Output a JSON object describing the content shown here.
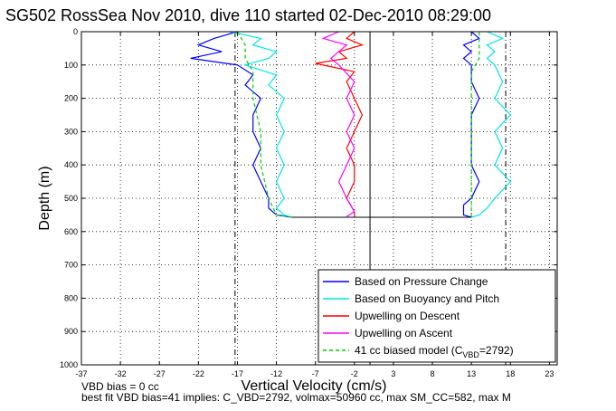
{
  "chart_data": {
    "type": "line",
    "title": "SG502 RossSea Nov 2010, dive 110 started 02-Dec-2010 08:29:00",
    "xlabel": "Vertical Velocity (cm/s)",
    "ylabel": "Depth (m)",
    "xlim": [
      -37,
      24
    ],
    "ylim": [
      1000,
      0
    ],
    "y_reversed": true,
    "grid": true,
    "x_ticks": [
      "-37",
      "-32",
      "-27",
      "-22",
      "-17",
      "-12",
      "-7",
      "-2",
      "3",
      "8",
      "13",
      "18",
      "23"
    ],
    "y_ticks": [
      "0",
      "100",
      "200",
      "300",
      "400",
      "500",
      "600",
      "700",
      "800",
      "900",
      "1000"
    ],
    "legend_position": "bottom-right",
    "reference_lines": [
      {
        "x": 0,
        "style": "solid",
        "color": "#000000"
      },
      {
        "x": -17.3,
        "style": "dash-dot",
        "color": "#000000"
      },
      {
        "x": 17.4,
        "style": "dash-dot",
        "color": "#000000"
      }
    ],
    "series": [
      {
        "name": "Based on Pressure Change",
        "color": "#0000ff",
        "style": "solid",
        "descent": {
          "depth": [
            0,
            20,
            40,
            60,
            80,
            100,
            130,
            160,
            200,
            250,
            300,
            350,
            400,
            450,
            500,
            530,
            550,
            557
          ],
          "velocity": [
            -17,
            -20,
            -22,
            -19,
            -23,
            -17,
            -15,
            -16,
            -14,
            -15,
            -15,
            -14,
            -15,
            -14,
            -13,
            -13,
            -12,
            -10
          ]
        },
        "ascent": {
          "depth": [
            557,
            550,
            520,
            500,
            450,
            400,
            350,
            300,
            250,
            200,
            150,
            100,
            80,
            60,
            40,
            20,
            0
          ],
          "velocity": [
            13,
            12,
            12,
            13,
            14,
            13,
            13,
            13,
            13,
            14,
            13,
            13,
            12,
            13,
            12,
            14,
            13
          ]
        }
      },
      {
        "name": "Based on Buoyancy and Pitch",
        "color": "#00e5e5",
        "style": "solid",
        "descent": {
          "depth": [
            0,
            20,
            40,
            60,
            80,
            100,
            130,
            160,
            200,
            250,
            300,
            350,
            400,
            450,
            500,
            530,
            550,
            557
          ],
          "velocity": [
            -18,
            -14,
            -15,
            -12,
            -13,
            -16,
            -12,
            -13,
            -11,
            -12,
            -11,
            -12,
            -11,
            -12,
            -11,
            -12,
            -11,
            -10
          ]
        },
        "ascent": {
          "depth": [
            557,
            550,
            530,
            500,
            450,
            400,
            350,
            300,
            250,
            200,
            150,
            100,
            80,
            60,
            40,
            20,
            0
          ],
          "velocity": [
            13,
            14,
            15,
            16,
            18,
            16,
            17,
            16,
            18,
            16,
            17,
            16,
            15,
            16,
            15,
            17,
            15
          ]
        }
      },
      {
        "name": "Upwelling on Descent",
        "color": "#ff0000",
        "style": "solid",
        "descent": {
          "depth": [
            0,
            20,
            40,
            60,
            80,
            95,
            120,
            150,
            200,
            250,
            300,
            350,
            400,
            450,
            500,
            540,
            555
          ],
          "velocity": [
            -2,
            -3,
            -1,
            -4,
            -3,
            -7,
            -2,
            -3,
            -2,
            -1,
            -2,
            -3,
            -2,
            -2,
            -3,
            -2,
            -2
          ]
        },
        "ascent": {
          "depth": [],
          "velocity": []
        }
      },
      {
        "name": "Upwelling on Ascent",
        "color": "#ff00ff",
        "style": "solid",
        "descent": {
          "depth": [],
          "velocity": []
        },
        "ascent": {
          "depth": [
            555,
            540,
            500,
            450,
            400,
            350,
            300,
            250,
            200,
            150,
            100,
            80,
            60,
            40,
            20,
            0
          ],
          "velocity": [
            -3,
            -2,
            -3,
            -4,
            -3,
            -2,
            -3,
            -2,
            -3,
            -2,
            -4,
            -5,
            -4,
            -3,
            -6,
            -4
          ]
        }
      },
      {
        "name": "41 cc biased model (C",
        "name_sub": "VBD",
        "name_suffix": "=2792)",
        "color": "#00cc00",
        "style": "dashed",
        "descent": {
          "depth": [
            0,
            40,
            80,
            120,
            200,
            300,
            400,
            500,
            550,
            557
          ],
          "velocity": [
            -17,
            -16,
            -16,
            -15,
            -15,
            -14,
            -14,
            -13,
            -12,
            -10
          ]
        },
        "ascent": {
          "depth": [
            557,
            550,
            500,
            400,
            300,
            200,
            120,
            80,
            40,
            0
          ],
          "velocity": [
            13,
            13,
            13,
            13,
            13,
            13,
            13,
            14,
            14,
            14
          ]
        }
      }
    ]
  },
  "footer": {
    "line1": "VBD bias = 0 cc",
    "line2": "best fit VBD bias=41 implies: C_VBD=2792, volmax=50960 cc, max SM_CC=582, max M"
  }
}
